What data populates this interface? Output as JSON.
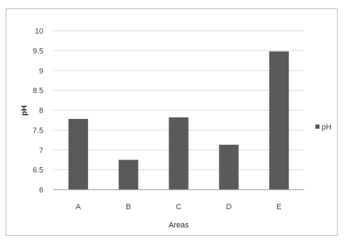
{
  "chart_data": {
    "type": "bar",
    "categories": [
      "A",
      "B",
      "C",
      "D",
      "E"
    ],
    "series": [
      {
        "name": "pH",
        "values": [
          7.78,
          6.75,
          7.82,
          7.13,
          9.48
        ]
      }
    ],
    "xlabel": "Areas",
    "ylabel": "pH",
    "ylim": [
      6,
      10
    ],
    "yticks": [
      "6",
      "6.5",
      "7",
      "7.5",
      "8",
      "8.5",
      "9",
      "9.5",
      "10"
    ],
    "grid": true,
    "legend_position": "right",
    "colors": {
      "bar": "#5a5a5a",
      "grid": "#d9d9d9",
      "axis": "#8c8c8c"
    }
  }
}
